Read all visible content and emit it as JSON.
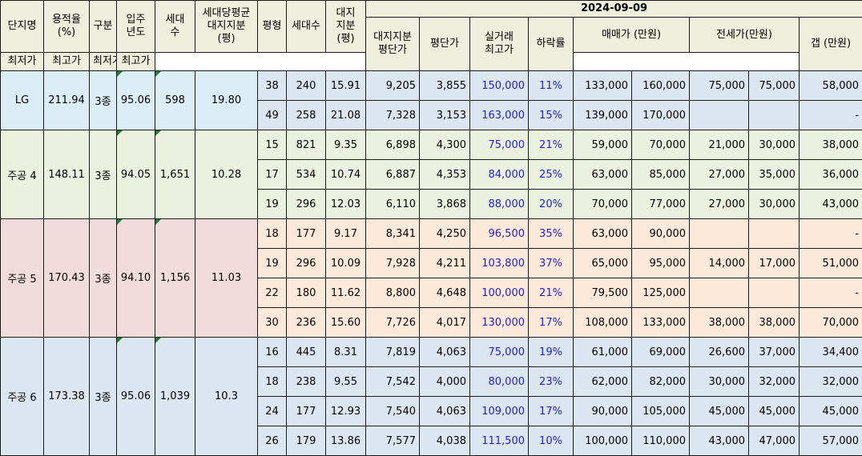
{
  "header": {
    "date": "2024-09-09",
    "col_name": "단지명",
    "col_far": "용적율\n(%)",
    "col_type": "구분",
    "col_year": "입주\n년도",
    "col_households": "세대\n수",
    "col_avg_land": "세대당평균\n대지지분\n(평)",
    "col_pyeong": "평형",
    "col_units": "세대수",
    "col_land": "대지\n지분\n(평)",
    "col_land_price": "대지지분\n평단가",
    "col_price_per": "평단가",
    "col_peak": "실거래\n최고가",
    "col_drop": "하락률",
    "group_sale": "매매가 (만원)",
    "group_jeonse": "전세가(만원)",
    "col_min": "최저가",
    "col_max": "최고가",
    "col_gap": "갭 (만원)"
  },
  "complexes": [
    {
      "name": "LG",
      "far": "211.94",
      "type": "3종",
      "year": "95.06",
      "households": "598",
      "avg_land": "19.80",
      "theme": "blue",
      "rows": [
        {
          "pyeong": "38",
          "units": "240",
          "land": "15.91",
          "land_price": "9,205",
          "price_per": "3,855",
          "peak": "150,000",
          "drop": "11%",
          "sale_min": "133,000",
          "sale_max": "160,000",
          "j_min": "75,000",
          "j_max": "75,000",
          "gap": "58,000"
        },
        {
          "pyeong": "49",
          "units": "258",
          "land": "21.08",
          "land_price": "7,328",
          "price_per": "3,153",
          "peak": "163,000",
          "drop": "15%",
          "sale_min": "139,000",
          "sale_max": "170,000",
          "j_min": "",
          "j_max": "",
          "gap": "-"
        }
      ]
    },
    {
      "name": "주공 4",
      "far": "148.11",
      "type": "3종",
      "year": "94.05",
      "households": "1,651",
      "avg_land": "10.28",
      "theme": "green",
      "rows": [
        {
          "pyeong": "15",
          "units": "821",
          "land": "9.35",
          "land_price": "6,898",
          "price_per": "4,300",
          "peak": "75,000",
          "drop": "21%",
          "sale_min": "59,000",
          "sale_max": "70,000",
          "j_min": "21,000",
          "j_max": "30,000",
          "gap": "38,000"
        },
        {
          "pyeong": "17",
          "units": "534",
          "land": "10.74",
          "land_price": "6,887",
          "price_per": "4,353",
          "peak": "84,000",
          "drop": "25%",
          "sale_min": "63,000",
          "sale_max": "85,000",
          "j_min": "27,000",
          "j_max": "35,000",
          "gap": "36,000"
        },
        {
          "pyeong": "19",
          "units": "296",
          "land": "12.03",
          "land_price": "6,110",
          "price_per": "3,868",
          "peak": "88,000",
          "drop": "20%",
          "sale_min": "70,000",
          "sale_max": "77,000",
          "j_min": "27,000",
          "j_max": "30,000",
          "gap": "43,000"
        }
      ]
    },
    {
      "name": "주공 5",
      "far": "170.43",
      "type": "3종",
      "year": "94.10",
      "households": "1,156",
      "avg_land": "11.03",
      "theme": "pink",
      "rows": [
        {
          "pyeong": "18",
          "units": "177",
          "land": "9.17",
          "land_price": "8,341",
          "price_per": "4,250",
          "peak": "96,500",
          "drop": "35%",
          "sale_min": "63,000",
          "sale_max": "90,000",
          "j_min": "",
          "j_max": "",
          "gap": "-"
        },
        {
          "pyeong": "19",
          "units": "296",
          "land": "10.09",
          "land_price": "7,928",
          "price_per": "4,211",
          "peak": "103,800",
          "drop": "37%",
          "sale_min": "65,000",
          "sale_max": "95,000",
          "j_min": "14,000",
          "j_max": "17,000",
          "gap": "51,000"
        },
        {
          "pyeong": "22",
          "units": "180",
          "land": "11.62",
          "land_price": "8,800",
          "price_per": "4,648",
          "peak": "100,000",
          "drop": "21%",
          "sale_min": "79,500",
          "sale_max": "125,000",
          "j_min": "",
          "j_max": "",
          "gap": "-"
        },
        {
          "pyeong": "30",
          "units": "236",
          "land": "15.60",
          "land_price": "7,726",
          "price_per": "4,017",
          "peak": "130,000",
          "drop": "17%",
          "sale_min": "108,000",
          "sale_max": "133,000",
          "j_min": "38,000",
          "j_max": "38,000",
          "gap": "70,000"
        }
      ]
    },
    {
      "name": "주공 6",
      "far": "173.38",
      "type": "3종",
      "year": "95.06",
      "households": "1,039",
      "avg_land": "10.3",
      "theme": "slate",
      "rows": [
        {
          "pyeong": "16",
          "units": "445",
          "land": "8.31",
          "land_price": "7,819",
          "price_per": "4,063",
          "peak": "75,000",
          "drop": "19%",
          "sale_min": "61,000",
          "sale_max": "69,000",
          "j_min": "26,600",
          "j_max": "37,000",
          "gap": "34,400"
        },
        {
          "pyeong": "18",
          "units": "238",
          "land": "9.55",
          "land_price": "7,542",
          "price_per": "4,000",
          "peak": "80,000",
          "drop": "23%",
          "sale_min": "62,000",
          "sale_max": "82,000",
          "j_min": "30,000",
          "j_max": "32,000",
          "gap": "32,000"
        },
        {
          "pyeong": "24",
          "units": "177",
          "land": "12.93",
          "land_price": "7,540",
          "price_per": "4,063",
          "peak": "109,000",
          "drop": "17%",
          "sale_min": "90,000",
          "sale_max": "105,000",
          "j_min": "45,000",
          "j_max": "45,000",
          "gap": "45,000"
        },
        {
          "pyeong": "26",
          "units": "179",
          "land": "13.86",
          "land_price": "7,577",
          "price_per": "4,038",
          "peak": "111,500",
          "drop": "10%",
          "sale_min": "100,000",
          "sale_max": "110,000",
          "j_min": "43,000",
          "j_max": "47,000",
          "gap": "57,000"
        }
      ]
    }
  ]
}
